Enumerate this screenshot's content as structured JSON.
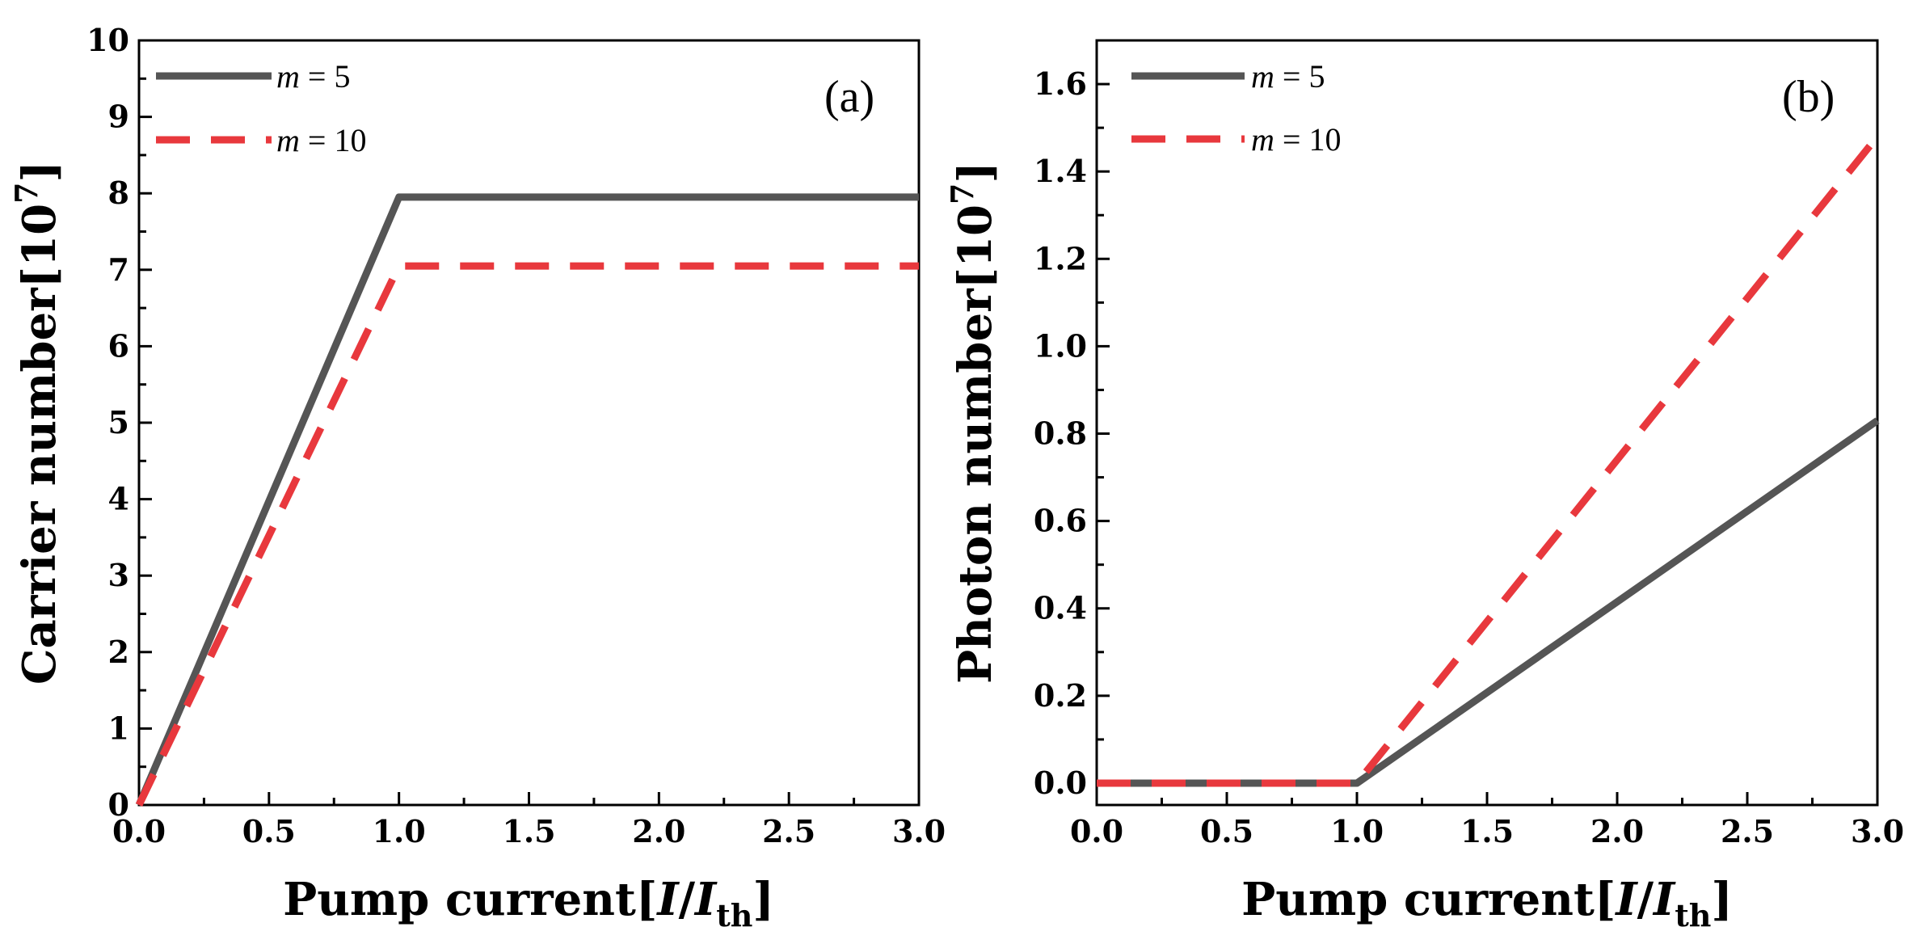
{
  "chart_data": [
    {
      "type": "line",
      "panel_label": "(a)",
      "xlabel_prefix": "Pump current[",
      "xlabel_var1": "I",
      "xlabel_slash": "/",
      "xlabel_var2": "I",
      "xlabel_sub": "th",
      "xlabel_suffix": "]",
      "ylabel_prefix": "Carrier number[10",
      "ylabel_sup": "7",
      "ylabel_suffix": "]",
      "xlim": [
        0,
        3
      ],
      "ylim": [
        0,
        10
      ],
      "xticks": [
        "0.0",
        "0.5",
        "1.0",
        "1.5",
        "2.0",
        "2.5",
        "3.0"
      ],
      "xtick_values": [
        0,
        0.5,
        1,
        1.5,
        2,
        2.5,
        3
      ],
      "yticks": [
        "0",
        "1",
        "2",
        "3",
        "4",
        "5",
        "6",
        "7",
        "8",
        "9",
        "10"
      ],
      "ytick_values": [
        0,
        1,
        2,
        3,
        4,
        5,
        6,
        7,
        8,
        9,
        10
      ],
      "legend_position": "top-left",
      "series": [
        {
          "name_var": "m",
          "name_rest": " = 5",
          "color": "#555555",
          "dash": "solid",
          "x": [
            0,
            1,
            3
          ],
          "y": [
            0,
            7.95,
            7.95
          ]
        },
        {
          "name_var": "m",
          "name_rest": " = 10",
          "color": "#e8383d",
          "dash": "dashed",
          "x": [
            0,
            1,
            3
          ],
          "y": [
            0,
            7.05,
            7.05
          ]
        }
      ]
    },
    {
      "type": "line",
      "panel_label": "(b)",
      "xlabel_prefix": "Pump current[",
      "xlabel_var1": "I",
      "xlabel_slash": "/",
      "xlabel_var2": "I",
      "xlabel_sub": "th",
      "xlabel_suffix": "]",
      "ylabel_prefix": "Photon number[10",
      "ylabel_sup": "7",
      "ylabel_suffix": "]",
      "xlim": [
        0,
        3
      ],
      "ylim": [
        -0.05,
        1.7
      ],
      "xticks": [
        "0.0",
        "0.5",
        "1.0",
        "1.5",
        "2.0",
        "2.5",
        "3.0"
      ],
      "xtick_values": [
        0,
        0.5,
        1,
        1.5,
        2,
        2.5,
        3
      ],
      "yticks": [
        "0.0",
        "0.2",
        "0.4",
        "0.6",
        "0.8",
        "1.0",
        "1.2",
        "1.4",
        "1.6"
      ],
      "ytick_values": [
        0,
        0.2,
        0.4,
        0.6,
        0.8,
        1.0,
        1.2,
        1.4,
        1.6
      ],
      "legend_position": "top-left",
      "series": [
        {
          "name_var": "m",
          "name_rest": " = 5",
          "color": "#555555",
          "dash": "solid",
          "x": [
            0,
            1,
            3
          ],
          "y": [
            0,
            0,
            0.83
          ]
        },
        {
          "name_var": "m",
          "name_rest": " = 10",
          "color": "#e8383d",
          "dash": "dashed",
          "x": [
            0,
            1,
            3
          ],
          "y": [
            0,
            0,
            1.48
          ]
        }
      ]
    }
  ]
}
